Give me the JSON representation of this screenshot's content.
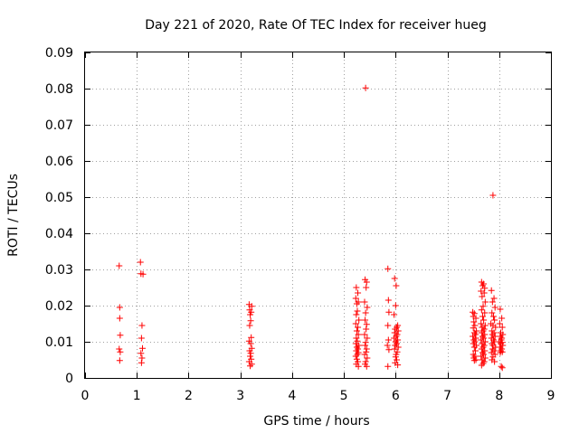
{
  "chart_data": {
    "type": "scatter",
    "title": "Day 221 of 2020, Rate Of TEC Index for receiver hueg",
    "xlabel": "GPS time / hours",
    "ylabel": "ROTI / TECUs",
    "xlim": [
      0,
      9
    ],
    "ylim": [
      0,
      0.09
    ],
    "xticks": [
      0,
      1,
      2,
      3,
      4,
      5,
      6,
      7,
      8,
      9
    ],
    "yticks": [
      0,
      0.01,
      0.02,
      0.03,
      0.04,
      0.05,
      0.06,
      0.07,
      0.08,
      0.09
    ],
    "xtick_labels": [
      "0",
      "1",
      "2",
      "3",
      "4",
      "5",
      "6",
      "7",
      "8",
      "9"
    ],
    "ytick_labels": [
      "0",
      "0.01",
      "0.02",
      "0.03",
      "0.04",
      "0.05",
      "0.06",
      "0.07",
      "0.08",
      "0.09"
    ],
    "grid": true,
    "marker": "+",
    "marker_color": "#ff0000",
    "points": [
      [
        0.66,
        0.031
      ],
      [
        0.67,
        0.0195
      ],
      [
        0.67,
        0.0165
      ],
      [
        0.68,
        0.0118
      ],
      [
        0.66,
        0.008
      ],
      [
        0.68,
        0.0072
      ],
      [
        0.67,
        0.0048
      ],
      [
        1.07,
        0.032
      ],
      [
        1.08,
        0.0288
      ],
      [
        1.12,
        0.0287
      ],
      [
        1.1,
        0.0145
      ],
      [
        1.09,
        0.011
      ],
      [
        1.11,
        0.0082
      ],
      [
        1.08,
        0.0068
      ],
      [
        1.1,
        0.0055
      ],
      [
        1.09,
        0.0042
      ],
      [
        3.17,
        0.0203
      ],
      [
        3.22,
        0.0198
      ],
      [
        3.18,
        0.0188
      ],
      [
        3.21,
        0.0182
      ],
      [
        3.19,
        0.0175
      ],
      [
        3.2,
        0.0158
      ],
      [
        3.18,
        0.0145
      ],
      [
        3.21,
        0.0112
      ],
      [
        3.17,
        0.0102
      ],
      [
        3.2,
        0.0095
      ],
      [
        3.22,
        0.0082
      ],
      [
        3.18,
        0.0075
      ],
      [
        3.2,
        0.0068
      ],
      [
        3.19,
        0.006
      ],
      [
        3.21,
        0.0052
      ],
      [
        3.17,
        0.0045
      ],
      [
        3.22,
        0.0038
      ],
      [
        3.19,
        0.0033
      ],
      [
        5.24,
        0.025
      ],
      [
        5.27,
        0.0235
      ],
      [
        5.23,
        0.022
      ],
      [
        5.28,
        0.021
      ],
      [
        5.25,
        0.0205
      ],
      [
        5.26,
        0.0185
      ],
      [
        5.24,
        0.0175
      ],
      [
        5.29,
        0.016
      ],
      [
        5.23,
        0.015
      ],
      [
        5.27,
        0.014
      ],
      [
        5.25,
        0.013
      ],
      [
        5.28,
        0.012
      ],
      [
        5.24,
        0.011
      ],
      [
        5.26,
        0.0102
      ],
      [
        5.23,
        0.0095
      ],
      [
        5.29,
        0.009
      ],
      [
        5.25,
        0.0085
      ],
      [
        5.27,
        0.008
      ],
      [
        5.24,
        0.0075
      ],
      [
        5.28,
        0.007
      ],
      [
        5.26,
        0.0065
      ],
      [
        5.23,
        0.006
      ],
      [
        5.25,
        0.0052
      ],
      [
        5.27,
        0.0045
      ],
      [
        5.24,
        0.0038
      ],
      [
        5.28,
        0.0032
      ],
      [
        5.42,
        0.0802
      ],
      [
        5.41,
        0.0272
      ],
      [
        5.44,
        0.0265
      ],
      [
        5.43,
        0.025
      ],
      [
        5.4,
        0.021
      ],
      [
        5.45,
        0.0195
      ],
      [
        5.42,
        0.018
      ],
      [
        5.41,
        0.016
      ],
      [
        5.44,
        0.0148
      ],
      [
        5.43,
        0.0135
      ],
      [
        5.4,
        0.012
      ],
      [
        5.45,
        0.011
      ],
      [
        5.42,
        0.0098
      ],
      [
        5.41,
        0.009
      ],
      [
        5.44,
        0.008
      ],
      [
        5.43,
        0.0072
      ],
      [
        5.4,
        0.0065
      ],
      [
        5.45,
        0.0055
      ],
      [
        5.42,
        0.0045
      ],
      [
        5.41,
        0.0038
      ],
      [
        5.44,
        0.0032
      ],
      [
        5.85,
        0.0302
      ],
      [
        5.86,
        0.0215
      ],
      [
        5.87,
        0.0182
      ],
      [
        5.85,
        0.0145
      ],
      [
        5.86,
        0.0105
      ],
      [
        5.84,
        0.009
      ],
      [
        5.87,
        0.0078
      ],
      [
        5.85,
        0.0032
      ],
      [
        5.98,
        0.0275
      ],
      [
        6.01,
        0.0255
      ],
      [
        6.0,
        0.02
      ],
      [
        5.97,
        0.0175
      ],
      [
        6.04,
        0.0145
      ],
      [
        6.02,
        0.014
      ],
      [
        5.99,
        0.0135
      ],
      [
        6.05,
        0.013
      ],
      [
        5.98,
        0.0125
      ],
      [
        6.03,
        0.012
      ],
      [
        6.01,
        0.0115
      ],
      [
        5.97,
        0.011
      ],
      [
        6.04,
        0.0105
      ],
      [
        6.0,
        0.01
      ],
      [
        6.02,
        0.0095
      ],
      [
        5.99,
        0.009
      ],
      [
        6.05,
        0.0085
      ],
      [
        5.98,
        0.008
      ],
      [
        6.03,
        0.0072
      ],
      [
        6.01,
        0.0065
      ],
      [
        6.0,
        0.0058
      ],
      [
        6.02,
        0.005
      ],
      [
        5.99,
        0.0042
      ],
      [
        6.04,
        0.0036
      ],
      [
        7.49,
        0.0182
      ],
      [
        7.52,
        0.0178
      ],
      [
        7.5,
        0.017
      ],
      [
        7.55,
        0.0165
      ],
      [
        7.51,
        0.0155
      ],
      [
        7.53,
        0.0145
      ],
      [
        7.5,
        0.0138
      ],
      [
        7.56,
        0.013
      ],
      [
        7.52,
        0.0125
      ],
      [
        7.54,
        0.012
      ],
      [
        7.49,
        0.0115
      ],
      [
        7.55,
        0.011
      ],
      [
        7.51,
        0.0105
      ],
      [
        7.53,
        0.01
      ],
      [
        7.5,
        0.0095
      ],
      [
        7.56,
        0.009
      ],
      [
        7.52,
        0.0085
      ],
      [
        7.54,
        0.0075
      ],
      [
        7.5,
        0.0065
      ],
      [
        7.53,
        0.006
      ],
      [
        7.51,
        0.0055
      ],
      [
        7.55,
        0.005
      ],
      [
        7.52,
        0.0048
      ],
      [
        7.66,
        0.0265
      ],
      [
        7.7,
        0.026
      ],
      [
        7.68,
        0.0255
      ],
      [
        7.72,
        0.0248
      ],
      [
        7.65,
        0.024
      ],
      [
        7.71,
        0.0235
      ],
      [
        7.67,
        0.0225
      ],
      [
        7.73,
        0.021
      ],
      [
        7.69,
        0.0198
      ],
      [
        7.66,
        0.0188
      ],
      [
        7.72,
        0.018
      ],
      [
        7.68,
        0.017
      ],
      [
        7.7,
        0.016
      ],
      [
        7.65,
        0.015
      ],
      [
        7.73,
        0.0145
      ],
      [
        7.67,
        0.014
      ],
      [
        7.71,
        0.0135
      ],
      [
        7.69,
        0.013
      ],
      [
        7.66,
        0.0125
      ],
      [
        7.72,
        0.012
      ],
      [
        7.68,
        0.0115
      ],
      [
        7.7,
        0.011
      ],
      [
        7.65,
        0.0105
      ],
      [
        7.73,
        0.01
      ],
      [
        7.67,
        0.0095
      ],
      [
        7.71,
        0.009
      ],
      [
        7.69,
        0.0085
      ],
      [
        7.66,
        0.008
      ],
      [
        7.72,
        0.0075
      ],
      [
        7.68,
        0.007
      ],
      [
        7.7,
        0.0065
      ],
      [
        7.65,
        0.006
      ],
      [
        7.73,
        0.0055
      ],
      [
        7.67,
        0.005
      ],
      [
        7.71,
        0.0045
      ],
      [
        7.69,
        0.004
      ],
      [
        7.66,
        0.0035
      ],
      [
        7.88,
        0.0505
      ],
      [
        7.85,
        0.0242
      ],
      [
        7.9,
        0.022
      ],
      [
        7.87,
        0.021
      ],
      [
        7.92,
        0.0195
      ],
      [
        7.86,
        0.018
      ],
      [
        7.89,
        0.017
      ],
      [
        7.91,
        0.016
      ],
      [
        7.84,
        0.015
      ],
      [
        7.88,
        0.0145
      ],
      [
        7.93,
        0.014
      ],
      [
        7.86,
        0.013
      ],
      [
        7.9,
        0.0125
      ],
      [
        7.87,
        0.012
      ],
      [
        7.92,
        0.0115
      ],
      [
        7.85,
        0.011
      ],
      [
        7.89,
        0.0105
      ],
      [
        7.91,
        0.01
      ],
      [
        7.86,
        0.0095
      ],
      [
        7.88,
        0.009
      ],
      [
        7.93,
        0.0085
      ],
      [
        7.87,
        0.008
      ],
      [
        7.9,
        0.0075
      ],
      [
        7.85,
        0.007
      ],
      [
        7.92,
        0.0065
      ],
      [
        7.88,
        0.0058
      ],
      [
        7.86,
        0.005
      ],
      [
        7.91,
        0.0045
      ],
      [
        8.02,
        0.019
      ],
      [
        8.05,
        0.0165
      ],
      [
        8.01,
        0.015
      ],
      [
        8.06,
        0.014
      ],
      [
        8.03,
        0.0125
      ],
      [
        8.07,
        0.012
      ],
      [
        8.02,
        0.0115
      ],
      [
        8.05,
        0.011
      ],
      [
        8.04,
        0.0105
      ],
      [
        8.0,
        0.01
      ],
      [
        8.06,
        0.0098
      ],
      [
        8.03,
        0.0095
      ],
      [
        8.07,
        0.009
      ],
      [
        8.01,
        0.0085
      ],
      [
        8.05,
        0.008
      ],
      [
        8.03,
        0.0075
      ],
      [
        8.06,
        0.0072
      ],
      [
        8.02,
        0.007
      ],
      [
        8.04,
        0.0032
      ],
      [
        8.06,
        0.0028
      ]
    ]
  }
}
